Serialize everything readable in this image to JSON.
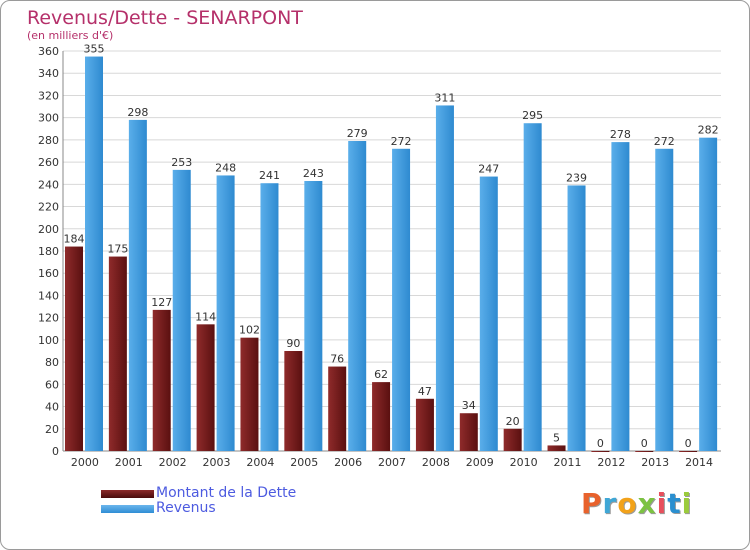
{
  "title": "Revenus/Dette - SENARPONT",
  "subtitle": "(en milliers d'€)",
  "colors": {
    "debt": "#7a1e1e",
    "revenue": "#3f9ee3",
    "title": "#b5306a",
    "legend_text": "#4d5be0"
  },
  "legend": {
    "debt_label": "Montant de la Dette",
    "revenue_label": "Revenus"
  },
  "logo": {
    "letters": [
      "P",
      "r",
      "o",
      "x",
      "i",
      "t",
      "i"
    ],
    "colors": [
      "#e8622c",
      "#3fa7d6",
      "#f2a21a",
      "#7cc242",
      "#e84f5c",
      "#2a8fd0",
      "#9bcb3c"
    ]
  },
  "chart_data": {
    "type": "bar",
    "title": "Revenus/Dette - SENARPONT",
    "ylabel": "(en milliers d'€)",
    "xlabel": "",
    "ylim": [
      0,
      360
    ],
    "ytick_step": 20,
    "grid": true,
    "legend_position": "bottom-left",
    "categories": [
      "2000",
      "2001",
      "2002",
      "2003",
      "2004",
      "2005",
      "2006",
      "2007",
      "2008",
      "2009",
      "2010",
      "2011",
      "2012",
      "2013",
      "2014"
    ],
    "series": [
      {
        "name": "Montant de la Dette",
        "values": [
          184,
          175,
          127,
          114,
          102,
          90,
          76,
          62,
          47,
          34,
          20,
          5,
          0,
          0,
          0
        ]
      },
      {
        "name": "Revenus",
        "values": [
          355,
          298,
          253,
          248,
          241,
          243,
          279,
          272,
          311,
          247,
          295,
          239,
          278,
          272,
          282
        ]
      }
    ]
  }
}
